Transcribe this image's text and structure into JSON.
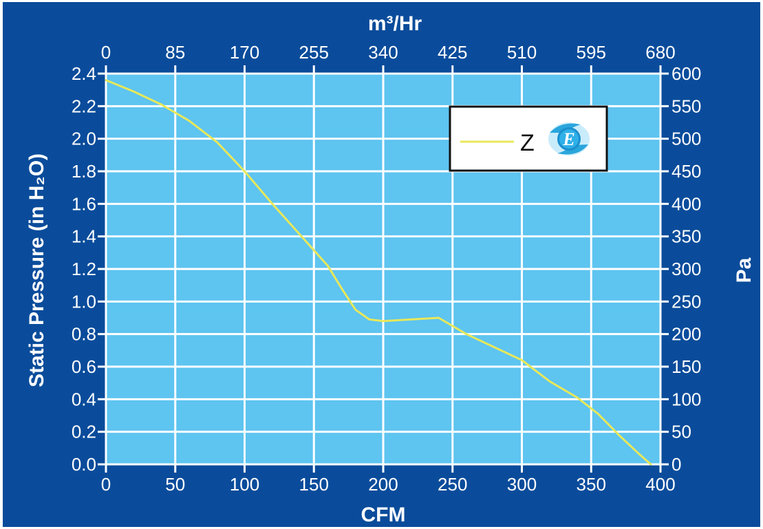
{
  "chart_data": {
    "type": "line",
    "xlabel": "CFM",
    "x2label": "m³/Hr",
    "ylabel": "Static Pressure (in H₂O)",
    "y2label": "Pa",
    "xlim": [
      0,
      400
    ],
    "ylim": [
      0,
      2.4
    ],
    "x_ticks": [
      "0",
      "50",
      "100",
      "150",
      "200",
      "250",
      "300",
      "350",
      "400"
    ],
    "x2_ticks": [
      "0",
      "85",
      "170",
      "255",
      "340",
      "425",
      "510",
      "595",
      "680"
    ],
    "y_ticks": [
      "0.0",
      "0.2",
      "0.4",
      "0.6",
      "0.8",
      "1.0",
      "1.2",
      "1.4",
      "1.6",
      "1.8",
      "2.0",
      "2.2",
      "2.4"
    ],
    "y2_ticks": [
      "0",
      "50",
      "100",
      "150",
      "200",
      "250",
      "300",
      "350",
      "400",
      "450",
      "500",
      "550",
      "600"
    ],
    "grid": true,
    "legend_position": "top-right",
    "line_color": "#e8e85a",
    "plot_background": "#5ec4f0",
    "frame_color": "#0a4c9b",
    "series": [
      {
        "name": "Z",
        "x": [
          0,
          20,
          40,
          60,
          80,
          100,
          120,
          140,
          160,
          170,
          180,
          190,
          200,
          220,
          240,
          260,
          280,
          300,
          320,
          340,
          355,
          370,
          385,
          393
        ],
        "y": [
          2.36,
          2.29,
          2.21,
          2.11,
          1.98,
          1.8,
          1.6,
          1.41,
          1.22,
          1.08,
          0.95,
          0.89,
          0.88,
          0.89,
          0.9,
          0.8,
          0.72,
          0.64,
          0.51,
          0.41,
          0.31,
          0.18,
          0.06,
          0.0
        ]
      }
    ]
  }
}
